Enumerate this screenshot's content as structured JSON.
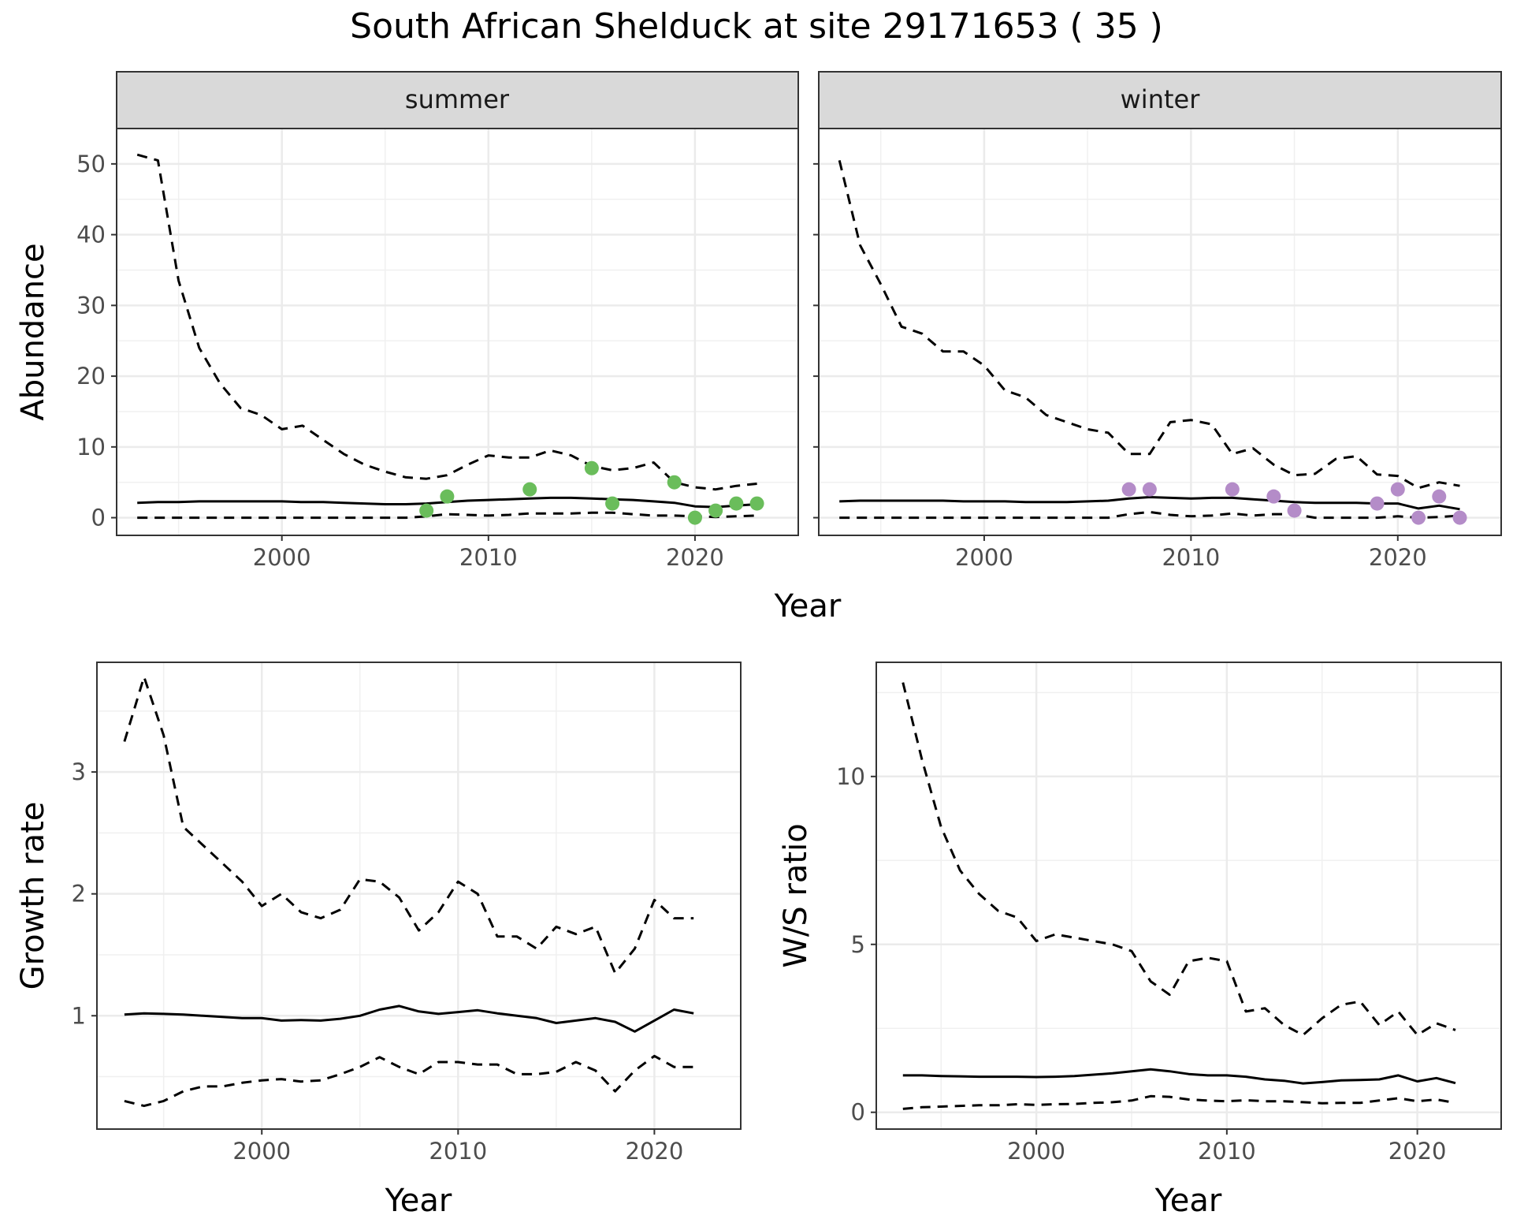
{
  "title": "South African Shelduck at site 29171653 ( 35 )",
  "colors": {
    "summer_points": "#6abd5b",
    "winter_points": "#b48cc8",
    "line": "#000000"
  },
  "chart_data": [
    {
      "type": "line",
      "panel": "summer",
      "xlabel": "Year",
      "ylabel": "Abundance",
      "xlim": [
        1992,
        2025
      ],
      "ylim": [
        -2.5,
        55
      ],
      "xticks": [
        2000,
        2010,
        2020
      ],
      "yticks": [
        0,
        10,
        20,
        30,
        40,
        50
      ],
      "x": [
        1993,
        1994,
        1995,
        1996,
        1997,
        1998,
        1999,
        2000,
        2001,
        2002,
        2003,
        2004,
        2005,
        2006,
        2007,
        2008,
        2009,
        2010,
        2011,
        2012,
        2013,
        2014,
        2015,
        2016,
        2017,
        2018,
        2019,
        2020,
        2021,
        2022,
        2023
      ],
      "series": [
        {
          "role": "estimate",
          "line": "solid",
          "values": [
            2.1,
            2.2,
            2.2,
            2.3,
            2.3,
            2.3,
            2.3,
            2.3,
            2.2,
            2.2,
            2.1,
            2.0,
            1.9,
            1.9,
            2.0,
            2.2,
            2.4,
            2.5,
            2.6,
            2.7,
            2.8,
            2.8,
            2.7,
            2.6,
            2.5,
            2.3,
            2.1,
            1.6,
            1.5,
            1.7,
            1.9
          ]
        },
        {
          "role": "upper",
          "line": "dashed",
          "values": [
            51.3,
            50.5,
            33.5,
            24.0,
            19.0,
            15.5,
            14.5,
            12.5,
            13.0,
            11.0,
            9.0,
            7.5,
            6.5,
            5.7,
            5.5,
            6.0,
            7.5,
            8.8,
            8.5,
            8.5,
            9.5,
            8.8,
            7.3,
            6.7,
            7.0,
            7.8,
            5.0,
            4.3,
            4.0,
            4.5,
            4.8
          ]
        },
        {
          "role": "lower",
          "line": "dashed",
          "values": [
            0,
            0,
            0,
            0,
            0,
            0,
            0,
            0,
            0,
            0,
            0,
            0,
            0,
            0,
            0.2,
            0.5,
            0.4,
            0.3,
            0.4,
            0.6,
            0.6,
            0.6,
            0.7,
            0.7,
            0.5,
            0.3,
            0.3,
            0.2,
            0.1,
            0.2,
            0.3
          ]
        },
        {
          "role": "observed",
          "type": "scatter",
          "x": [
            2007,
            2008,
            2012,
            2015,
            2016,
            2019,
            2020,
            2021,
            2022,
            2023
          ],
          "values": [
            1,
            3,
            4,
            7,
            2,
            5,
            0,
            1,
            2,
            2
          ]
        }
      ]
    },
    {
      "type": "line",
      "panel": "winter",
      "xlabel": "Year",
      "ylabel": "Abundance",
      "xlim": [
        1992,
        2025
      ],
      "ylim": [
        -2.5,
        55
      ],
      "xticks": [
        2000,
        2010,
        2020
      ],
      "yticks": [
        0,
        10,
        20,
        30,
        40,
        50
      ],
      "x": [
        1993,
        1994,
        1995,
        1996,
        1997,
        1998,
        1999,
        2000,
        2001,
        2002,
        2003,
        2004,
        2005,
        2006,
        2007,
        2008,
        2009,
        2010,
        2011,
        2012,
        2013,
        2014,
        2015,
        2016,
        2017,
        2018,
        2019,
        2020,
        2021,
        2022,
        2023
      ],
      "series": [
        {
          "role": "estimate",
          "line": "solid",
          "values": [
            2.3,
            2.4,
            2.4,
            2.4,
            2.4,
            2.4,
            2.3,
            2.3,
            2.3,
            2.2,
            2.2,
            2.2,
            2.3,
            2.4,
            2.7,
            2.9,
            2.8,
            2.7,
            2.8,
            2.8,
            2.6,
            2.4,
            2.2,
            2.1,
            2.1,
            2.1,
            2.0,
            2.0,
            1.3,
            1.7,
            1.2
          ]
        },
        {
          "role": "upper",
          "line": "dashed",
          "values": [
            50.5,
            38.5,
            33.0,
            27.0,
            26.0,
            23.5,
            23.5,
            21.5,
            18.0,
            17.0,
            14.5,
            13.5,
            12.5,
            12.0,
            9.0,
            9.0,
            13.5,
            13.8,
            13.2,
            9.0,
            9.8,
            7.5,
            6.0,
            6.2,
            8.3,
            8.7,
            6.1,
            5.9,
            4.2,
            5.0,
            4.5
          ]
        },
        {
          "role": "lower",
          "line": "dashed",
          "values": [
            0,
            0,
            0,
            0,
            0,
            0,
            0,
            0,
            0,
            0,
            0,
            0,
            0,
            0,
            0.5,
            0.8,
            0.4,
            0.2,
            0.3,
            0.6,
            0.3,
            0.5,
            0.5,
            0,
            0,
            0,
            0,
            0.2,
            0,
            0.1,
            0.3
          ]
        },
        {
          "role": "observed",
          "type": "scatter",
          "x": [
            2007,
            2008,
            2012,
            2014,
            2015,
            2019,
            2020,
            2021,
            2022,
            2023
          ],
          "values": [
            4,
            4,
            4,
            3,
            1,
            2,
            4,
            0,
            3,
            0
          ]
        }
      ]
    },
    {
      "type": "line",
      "panel": "growth",
      "xlabel": "Year",
      "ylabel": "Growth rate",
      "xlim": [
        1991.6,
        2024.4
      ],
      "ylim": [
        0.07,
        3.9
      ],
      "xticks": [
        2000,
        2010,
        2020
      ],
      "yticks": [
        1,
        2,
        3
      ],
      "x": [
        1993,
        1994,
        1995,
        1996,
        1997,
        1998,
        1999,
        2000,
        2001,
        2002,
        2003,
        2004,
        2005,
        2006,
        2007,
        2008,
        2009,
        2010,
        2011,
        2012,
        2013,
        2014,
        2015,
        2016,
        2017,
        2018,
        2019,
        2020,
        2021,
        2022
      ],
      "series": [
        {
          "role": "estimate",
          "line": "solid",
          "values": [
            1.01,
            1.02,
            1.015,
            1.01,
            1.0,
            0.99,
            0.98,
            0.98,
            0.96,
            0.965,
            0.96,
            0.975,
            1.0,
            1.05,
            1.08,
            1.035,
            1.015,
            1.03,
            1.045,
            1.02,
            1.0,
            0.98,
            0.94,
            0.96,
            0.98,
            0.95,
            0.87,
            0.96,
            1.05,
            1.02
          ]
        },
        {
          "role": "upper",
          "line": "dashed",
          "values": [
            3.25,
            3.78,
            3.3,
            2.55,
            2.4,
            2.25,
            2.1,
            1.9,
            2.0,
            1.85,
            1.8,
            1.87,
            2.12,
            2.1,
            1.97,
            1.7,
            1.85,
            2.1,
            2.0,
            1.65,
            1.65,
            1.55,
            1.73,
            1.67,
            1.73,
            1.35,
            1.55,
            1.95,
            1.8,
            1.8
          ]
        },
        {
          "role": "lower",
          "line": "dashed",
          "values": [
            0.3,
            0.26,
            0.3,
            0.38,
            0.42,
            0.42,
            0.45,
            0.47,
            0.48,
            0.46,
            0.47,
            0.52,
            0.58,
            0.66,
            0.58,
            0.52,
            0.62,
            0.62,
            0.6,
            0.6,
            0.52,
            0.52,
            0.54,
            0.62,
            0.55,
            0.38,
            0.55,
            0.67,
            0.58,
            0.58
          ]
        }
      ]
    },
    {
      "type": "line",
      "panel": "ratio",
      "xlabel": "Year",
      "ylabel": "W/S ratio",
      "xlim": [
        1991.6,
        2024.4
      ],
      "ylim": [
        -0.5,
        13.4
      ],
      "xticks": [
        2000,
        2010,
        2020
      ],
      "yticks": [
        0,
        5,
        10
      ],
      "x": [
        1993,
        1994,
        1995,
        1996,
        1997,
        1998,
        1999,
        2000,
        2001,
        2002,
        2003,
        2004,
        2005,
        2006,
        2007,
        2008,
        2009,
        2010,
        2011,
        2012,
        2013,
        2014,
        2015,
        2016,
        2017,
        2018,
        2019,
        2020,
        2021,
        2022
      ],
      "series": [
        {
          "role": "estimate",
          "line": "solid",
          "values": [
            1.1,
            1.1,
            1.08,
            1.07,
            1.06,
            1.06,
            1.06,
            1.05,
            1.06,
            1.08,
            1.12,
            1.16,
            1.22,
            1.28,
            1.22,
            1.14,
            1.1,
            1.1,
            1.06,
            0.98,
            0.94,
            0.86,
            0.9,
            0.95,
            0.96,
            0.98,
            1.1,
            0.92,
            1.02,
            0.87
          ]
        },
        {
          "role": "upper",
          "line": "dashed",
          "values": [
            12.8,
            10.5,
            8.5,
            7.2,
            6.5,
            6.0,
            5.8,
            5.1,
            5.3,
            5.2,
            5.1,
            5.0,
            4.8,
            3.9,
            3.5,
            4.5,
            4.6,
            4.5,
            3.0,
            3.1,
            2.6,
            2.3,
            2.8,
            3.2,
            3.3,
            2.6,
            3.0,
            2.3,
            2.65,
            2.45
          ]
        },
        {
          "role": "lower",
          "line": "dashed",
          "values": [
            0.1,
            0.15,
            0.17,
            0.19,
            0.21,
            0.21,
            0.24,
            0.22,
            0.24,
            0.25,
            0.28,
            0.3,
            0.35,
            0.48,
            0.46,
            0.38,
            0.35,
            0.33,
            0.36,
            0.33,
            0.33,
            0.3,
            0.27,
            0.28,
            0.28,
            0.35,
            0.42,
            0.33,
            0.38,
            0.28
          ]
        }
      ]
    }
  ]
}
